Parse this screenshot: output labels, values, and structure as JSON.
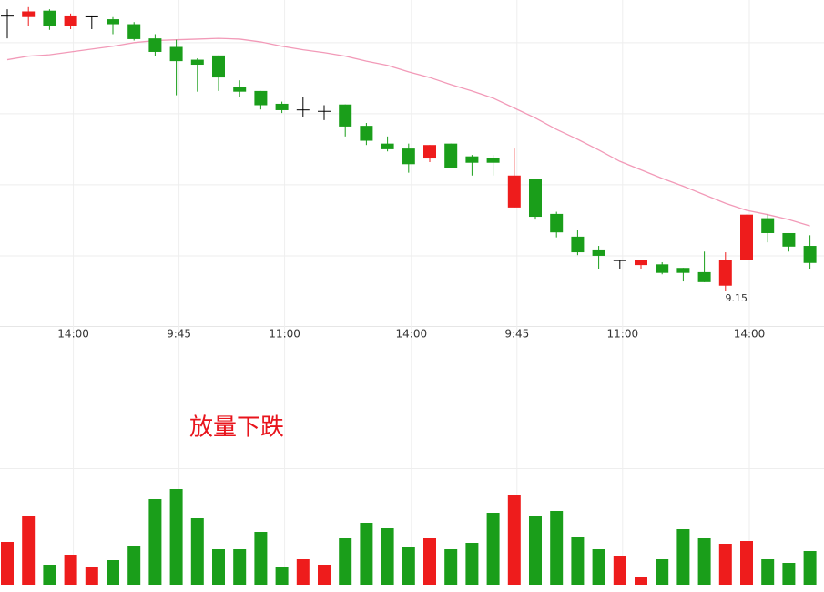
{
  "chart_data": {
    "type": "candlestick",
    "categories": [
      null,
      null,
      null,
      "14:00",
      null,
      null,
      null,
      null,
      "9:45",
      null,
      null,
      null,
      null,
      "11:00",
      null,
      null,
      null,
      null,
      null,
      "14:00",
      null,
      null,
      null,
      null,
      "9:45",
      null,
      null,
      null,
      null,
      "11:00",
      null,
      null,
      null,
      null,
      null,
      "14:00",
      null,
      null,
      null
    ],
    "open": [
      9.538,
      9.536,
      9.545,
      9.524,
      9.537,
      9.533,
      9.526,
      9.506,
      9.494,
      9.476,
      9.482,
      9.438,
      9.432,
      9.414,
      9.406,
      9.404,
      9.413,
      9.383,
      9.358,
      9.351,
      9.337,
      9.358,
      9.34,
      9.338,
      9.268,
      9.308,
      9.259,
      9.227,
      9.209,
      9.194,
      9.187,
      9.188,
      9.183,
      9.177,
      9.158,
      9.194,
      9.253,
      9.232,
      9.214
    ],
    "high": [
      9.547,
      9.55,
      9.547,
      9.541,
      9.537,
      9.536,
      9.529,
      9.512,
      9.504,
      9.478,
      9.482,
      9.447,
      9.432,
      9.417,
      9.423,
      9.412,
      9.413,
      9.387,
      9.368,
      9.358,
      9.356,
      9.358,
      9.342,
      9.342,
      9.351,
      9.308,
      9.262,
      9.237,
      9.214,
      9.194,
      9.194,
      9.191,
      9.183,
      9.206,
      9.205,
      9.258,
      9.258,
      9.232,
      9.229
    ],
    "low": [
      9.506,
      9.524,
      9.518,
      9.519,
      9.519,
      9.512,
      9.503,
      9.481,
      9.426,
      9.431,
      9.432,
      9.424,
      9.406,
      9.401,
      9.396,
      9.391,
      9.368,
      9.356,
      9.347,
      9.317,
      9.332,
      9.324,
      9.313,
      9.313,
      9.268,
      9.251,
      9.226,
      9.201,
      9.182,
      9.182,
      9.182,
      9.174,
      9.164,
      9.163,
      9.15,
      9.194,
      9.219,
      9.206,
      9.182
    ],
    "close": [
      9.538,
      9.544,
      9.524,
      9.537,
      9.537,
      9.526,
      9.505,
      9.487,
      9.474,
      9.469,
      9.451,
      9.431,
      9.412,
      9.405,
      9.406,
      9.404,
      9.382,
      9.362,
      9.35,
      9.329,
      9.356,
      9.324,
      9.331,
      9.331,
      9.313,
      9.255,
      9.233,
      9.205,
      9.2,
      9.194,
      9.194,
      9.176,
      9.176,
      9.163,
      9.194,
      9.258,
      9.232,
      9.213,
      9.19
    ],
    "ma": {
      "color": "#f29ab8",
      "values": [
        9.476,
        9.481,
        9.483,
        9.487,
        9.491,
        9.495,
        9.5,
        9.503,
        9.504,
        9.505,
        9.506,
        9.505,
        9.501,
        9.495,
        9.49,
        9.486,
        9.481,
        9.474,
        9.468,
        9.459,
        9.451,
        9.441,
        9.432,
        9.422,
        9.408,
        9.394,
        9.378,
        9.364,
        9.349,
        9.333,
        9.321,
        9.309,
        9.298,
        9.286,
        9.274,
        9.264,
        9.258,
        9.251,
        9.242
      ]
    },
    "volume": [
      47,
      75,
      22,
      33,
      19,
      27,
      42,
      94,
      105,
      73,
      39,
      39,
      58,
      19,
      28,
      22,
      51,
      68,
      62,
      41,
      51,
      39,
      46,
      79,
      99,
      75,
      81,
      52,
      39,
      32,
      9,
      28,
      61,
      51,
      45,
      48,
      28,
      24,
      37
    ],
    "up_color": "#ee1c1c",
    "down_color": "#1a9e1a",
    "doji_color": "#000000",
    "ylim": [
      9.1,
      9.56
    ],
    "ygrid": [
      9.2,
      9.3,
      9.4,
      9.5
    ],
    "volume_ylim": [
      0,
      255
    ],
    "annotation": "放量下跌"
  }
}
